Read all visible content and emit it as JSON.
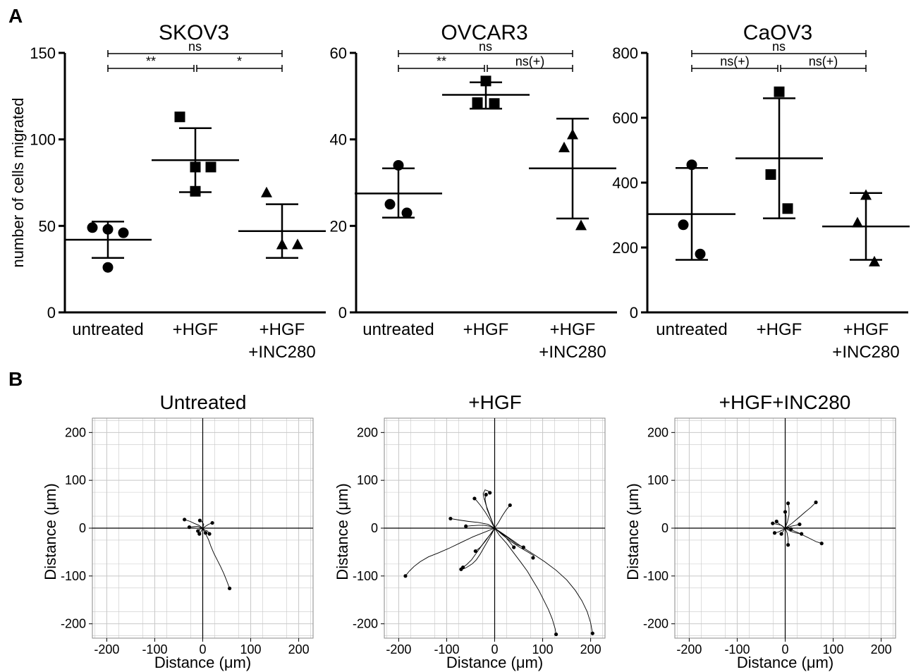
{
  "panel_labels": [
    "A",
    "B"
  ],
  "colors": {
    "ink": "#000000",
    "grid": "#c8c8c8"
  },
  "chart_data": [
    {
      "type": "scatter",
      "title": "SKOV3",
      "ylabel": "number of cells migrated",
      "xlabel": "",
      "categories": [
        "untreated",
        [
          "+HGF"
        ],
        [
          "+HGF",
          "+INC280"
        ]
      ],
      "ylim": [
        0,
        150
      ],
      "yticks": [
        0,
        50,
        100,
        150
      ],
      "marker": [
        "circle",
        "square",
        "triangle"
      ],
      "points": [
        [
          49,
          48,
          46,
          26
        ],
        [
          113,
          84,
          84,
          70
        ],
        [
          69,
          39,
          39,
          39
        ]
      ],
      "mean": [
        42,
        88,
        47
      ],
      "sd_upper": [
        52.5,
        106.5,
        62.5
      ],
      "sd_lower": [
        31.5,
        69.5,
        31.5
      ],
      "significance": [
        {
          "from": 0,
          "to": 2,
          "label": "ns",
          "level": 0
        },
        {
          "from": 0,
          "to": 1,
          "label": "**",
          "level": 1
        },
        {
          "from": 1,
          "to": 2,
          "label": "*",
          "level": 1
        }
      ]
    },
    {
      "type": "scatter",
      "title": "OVCAR3",
      "ylabel": "",
      "xlabel": "",
      "categories": [
        "untreated",
        [
          "+HGF"
        ],
        [
          "+HGF",
          "+INC280"
        ]
      ],
      "ylim": [
        0,
        60
      ],
      "yticks": [
        0,
        20,
        40,
        60
      ],
      "marker": [
        "circle",
        "square",
        "triangle"
      ],
      "points": [
        [
          34,
          25,
          23
        ],
        [
          53.5,
          48.5,
          48.3
        ],
        [
          41,
          38,
          20
        ]
      ],
      "mean": [
        27.5,
        50.3,
        33.3
      ],
      "sd_upper": [
        33.3,
        53.2,
        44.8
      ],
      "sd_lower": [
        21.9,
        47.1,
        21.7
      ],
      "significance": [
        {
          "from": 0,
          "to": 2,
          "label": "ns",
          "level": 0
        },
        {
          "from": 0,
          "to": 1,
          "label": "**",
          "level": 1
        },
        {
          "from": 1,
          "to": 2,
          "label": "ns(+)",
          "level": 1
        }
      ]
    },
    {
      "type": "scatter",
      "title": "CaOV3",
      "ylabel": "",
      "xlabel": "",
      "categories": [
        "untreated",
        [
          "+HGF"
        ],
        [
          "+HGF",
          "+INC280"
        ]
      ],
      "ylim": [
        0,
        800
      ],
      "yticks": [
        0,
        200,
        400,
        600,
        800
      ],
      "marker": [
        "circle",
        "square",
        "triangle"
      ],
      "points": [
        [
          455,
          270,
          180
        ],
        [
          680,
          425,
          320
        ],
        [
          360,
          275,
          155
        ]
      ],
      "mean": [
        303,
        475,
        265
      ],
      "sd_upper": [
        445,
        660,
        368
      ],
      "sd_lower": [
        162,
        290,
        162
      ],
      "significance": [
        {
          "from": 0,
          "to": 2,
          "label": "ns",
          "level": 0
        },
        {
          "from": 0,
          "to": 1,
          "label": "ns(+)",
          "level": 1
        },
        {
          "from": 1,
          "to": 2,
          "label": "ns(+)",
          "level": 1
        }
      ]
    },
    {
      "type": "line",
      "title": "Untreated",
      "xlabel": "Distance (μm)",
      "ylabel": "Distance (μm)",
      "xlim": [
        -230,
        230
      ],
      "ylim": [
        -230,
        230
      ],
      "xticks": [
        -200,
        -100,
        0,
        100,
        200
      ],
      "yticks": [
        -200,
        -100,
        0,
        100,
        200
      ],
      "grid": true,
      "tracks": [
        [
          [
            0,
            0
          ],
          [
            6,
            -12
          ],
          [
            12,
            -24
          ],
          [
            17,
            -38
          ],
          [
            23,
            -52
          ],
          [
            30,
            -66
          ],
          [
            37,
            -80
          ],
          [
            44,
            -95
          ],
          [
            50,
            -110
          ],
          [
            56,
            -126
          ]
        ],
        [
          [
            0,
            0
          ],
          [
            -8,
            6
          ],
          [
            -18,
            10
          ],
          [
            -26,
            14
          ],
          [
            -38,
            18
          ]
        ],
        [
          [
            0,
            0
          ],
          [
            -10,
            4
          ],
          [
            -20,
            3
          ],
          [
            -28,
            2
          ]
        ],
        [
          [
            0,
            0
          ],
          [
            6,
            4
          ],
          [
            12,
            8
          ],
          [
            20,
            11
          ]
        ],
        [
          [
            0,
            0
          ],
          [
            3,
            -6
          ],
          [
            6,
            -10
          ]
        ],
        [
          [
            0,
            0
          ],
          [
            -4,
            -8
          ],
          [
            -7,
            -12
          ]
        ],
        [
          [
            0,
            0
          ],
          [
            2,
            8
          ],
          [
            -2,
            14
          ],
          [
            -6,
            16
          ]
        ],
        [
          [
            0,
            0
          ],
          [
            4,
            -4
          ],
          [
            10,
            -6
          ],
          [
            14,
            -12
          ]
        ],
        [
          [
            0,
            0
          ],
          [
            -6,
            -2
          ],
          [
            -10,
            -6
          ]
        ]
      ]
    },
    {
      "type": "line",
      "title": "+HGF",
      "xlabel": "Distance (μm)",
      "ylabel": "Distance (μm)",
      "xlim": [
        -230,
        230
      ],
      "ylim": [
        -230,
        230
      ],
      "xticks": [
        -200,
        -100,
        0,
        100,
        200
      ],
      "yticks": [
        -200,
        -100,
        0,
        100,
        200
      ],
      "grid": true,
      "tracks": [
        [
          [
            0,
            0
          ],
          [
            -20,
            -8
          ],
          [
            -45,
            -18
          ],
          [
            -70,
            -30
          ],
          [
            -95,
            -42
          ],
          [
            -118,
            -52
          ],
          [
            -138,
            -60
          ],
          [
            -155,
            -70
          ],
          [
            -168,
            -80
          ],
          [
            -178,
            -90
          ],
          [
            -186,
            -100
          ]
        ],
        [
          [
            0,
            0
          ],
          [
            10,
            -15
          ],
          [
            25,
            -32
          ],
          [
            40,
            -52
          ],
          [
            55,
            -72
          ],
          [
            68,
            -90
          ],
          [
            80,
            -110
          ],
          [
            92,
            -130
          ],
          [
            102,
            -150
          ],
          [
            112,
            -170
          ],
          [
            120,
            -190
          ],
          [
            126,
            -210
          ],
          [
            128,
            -222
          ]
        ],
        [
          [
            0,
            0
          ],
          [
            18,
            -12
          ],
          [
            38,
            -26
          ],
          [
            58,
            -40
          ],
          [
            80,
            -54
          ],
          [
            104,
            -70
          ],
          [
            128,
            -88
          ],
          [
            150,
            -108
          ],
          [
            168,
            -130
          ],
          [
            182,
            -152
          ],
          [
            193,
            -175
          ],
          [
            200,
            -198
          ],
          [
            204,
            -220
          ]
        ],
        [
          [
            0,
            0
          ],
          [
            -6,
            -12
          ],
          [
            -14,
            -26
          ],
          [
            -22,
            -40
          ],
          [
            -30,
            -54
          ],
          [
            -38,
            -66
          ],
          [
            -46,
            -74
          ],
          [
            -55,
            -80
          ],
          [
            -62,
            -84
          ],
          [
            -70,
            -86
          ]
        ],
        [
          [
            0,
            0
          ],
          [
            -8,
            -12
          ],
          [
            -18,
            -24
          ],
          [
            -28,
            -38
          ],
          [
            -38,
            -52
          ],
          [
            -48,
            -66
          ],
          [
            -58,
            -76
          ],
          [
            -66,
            -82
          ]
        ],
        [
          [
            0,
            0
          ],
          [
            -14,
            8
          ],
          [
            -34,
            12
          ],
          [
            -54,
            14
          ],
          [
            -74,
            17
          ],
          [
            -92,
            20
          ]
        ],
        [
          [
            0,
            0
          ],
          [
            -10,
            4
          ],
          [
            -22,
            6
          ],
          [
            -34,
            6
          ],
          [
            -48,
            5
          ],
          [
            -60,
            4
          ]
        ],
        [
          [
            0,
            0
          ],
          [
            -6,
            16
          ],
          [
            -12,
            32
          ],
          [
            -18,
            48
          ],
          [
            -22,
            62
          ],
          [
            -24,
            72
          ],
          [
            -20,
            80
          ],
          [
            -14,
            78
          ],
          [
            -10,
            74
          ]
        ],
        [
          [
            0,
            0
          ],
          [
            -10,
            18
          ],
          [
            -20,
            34
          ],
          [
            -30,
            48
          ],
          [
            -38,
            58
          ],
          [
            -42,
            62
          ]
        ],
        [
          [
            0,
            0
          ],
          [
            8,
            12
          ],
          [
            16,
            26
          ],
          [
            24,
            38
          ],
          [
            32,
            48
          ]
        ],
        [
          [
            0,
            0
          ],
          [
            -10,
            -14
          ],
          [
            -20,
            -28
          ],
          [
            -30,
            -40
          ],
          [
            -40,
            -48
          ]
        ],
        [
          [
            0,
            0
          ],
          [
            10,
            -8
          ],
          [
            22,
            -18
          ],
          [
            32,
            -30
          ],
          [
            40,
            -40
          ]
        ],
        [
          [
            0,
            0
          ],
          [
            -8,
            20
          ],
          [
            -16,
            40
          ],
          [
            -20,
            60
          ],
          [
            -18,
            70
          ]
        ],
        [
          [
            0,
            0
          ],
          [
            14,
            -10
          ],
          [
            30,
            -22
          ],
          [
            46,
            -34
          ],
          [
            60,
            -40
          ]
        ],
        [
          [
            0,
            0
          ],
          [
            16,
            -14
          ],
          [
            34,
            -28
          ],
          [
            52,
            -40
          ],
          [
            66,
            -48
          ],
          [
            76,
            -54
          ],
          [
            82,
            -58
          ],
          [
            80,
            -62
          ]
        ]
      ]
    },
    {
      "type": "line",
      "title": "+HGF+INC280",
      "xlabel": "Distance (μm)",
      "ylabel": "Distance (μm)",
      "xlim": [
        -230,
        230
      ],
      "ylim": [
        -230,
        230
      ],
      "xticks": [
        -200,
        -100,
        0,
        100,
        200
      ],
      "yticks": [
        -200,
        -100,
        0,
        100,
        200
      ],
      "grid": true,
      "tracks": [
        [
          [
            0,
            0
          ],
          [
            14,
            -4
          ],
          [
            28,
            -10
          ],
          [
            40,
            -16
          ],
          [
            52,
            -22
          ],
          [
            64,
            -28
          ],
          [
            76,
            -32
          ]
        ],
        [
          [
            0,
            0
          ],
          [
            14,
            10
          ],
          [
            28,
            22
          ],
          [
            42,
            34
          ],
          [
            54,
            44
          ],
          [
            64,
            54
          ]
        ],
        [
          [
            0,
            0
          ],
          [
            10,
            -6
          ],
          [
            22,
            -10
          ],
          [
            34,
            -12
          ]
        ],
        [
          [
            0,
            0
          ],
          [
            4,
            -10
          ],
          [
            6,
            -22
          ],
          [
            6,
            -35
          ]
        ],
        [
          [
            0,
            0
          ],
          [
            -8,
            6
          ],
          [
            -16,
            8
          ],
          [
            -26,
            10
          ]
        ],
        [
          [
            0,
            0
          ],
          [
            -6,
            4
          ],
          [
            -14,
            10
          ],
          [
            -18,
            14
          ]
        ],
        [
          [
            0,
            0
          ],
          [
            2,
            12
          ],
          [
            2,
            24
          ],
          [
            0,
            34
          ]
        ],
        [
          [
            0,
            0
          ],
          [
            5,
            14
          ],
          [
            8,
            28
          ],
          [
            8,
            42
          ],
          [
            6,
            52
          ]
        ],
        [
          [
            0,
            0
          ],
          [
            -6,
            -4
          ],
          [
            -14,
            -8
          ],
          [
            -22,
            -10
          ]
        ],
        [
          [
            0,
            0
          ],
          [
            12,
            4
          ],
          [
            22,
            6
          ],
          [
            30,
            8
          ]
        ],
        [
          [
            0,
            0
          ],
          [
            -4,
            -6
          ],
          [
            -8,
            -12
          ]
        ],
        [
          [
            0,
            0
          ],
          [
            6,
            2
          ],
          [
            12,
            -2
          ]
        ]
      ]
    }
  ]
}
